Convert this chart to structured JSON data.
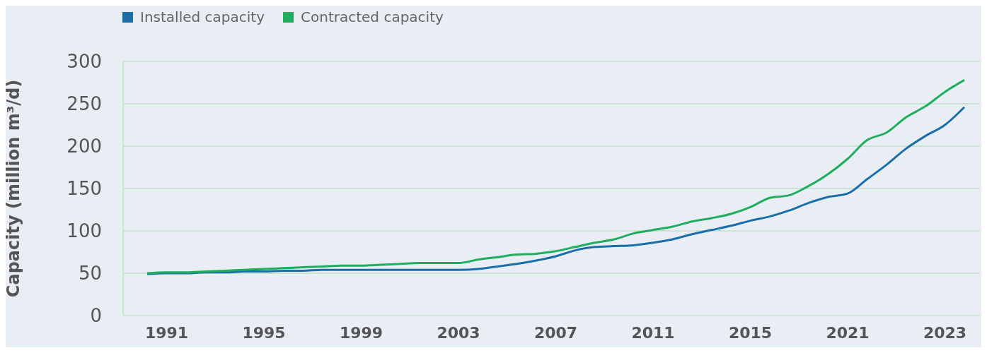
{
  "chart_data": {
    "type": "line",
    "ylabel": "Capacity (million m³/d)",
    "categories": [
      null,
      "1991",
      null,
      null,
      null,
      null,
      "1995",
      null,
      null,
      null,
      null,
      "1999",
      null,
      null,
      null,
      null,
      "2003",
      null,
      null,
      null,
      null,
      "2007",
      null,
      null,
      null,
      null,
      "2011",
      null,
      null,
      null,
      null,
      "2015",
      null,
      null,
      null,
      null,
      "2021",
      null,
      null,
      null,
      null,
      "2023",
      null
    ],
    "series": [
      {
        "name": "Installed capacity",
        "color": "#1a6fa8",
        "values": [
          49,
          50,
          50,
          51,
          51,
          52,
          52,
          53,
          53,
          54,
          54,
          54,
          54,
          54,
          54,
          54,
          54,
          55,
          58,
          61,
          65,
          70,
          77,
          81,
          82,
          83,
          86,
          90,
          96,
          101,
          106,
          112,
          117,
          124,
          133,
          140,
          144,
          161,
          178,
          197,
          212,
          225,
          246
        ]
      },
      {
        "name": "Contracted capacity",
        "color": "#20ad5e",
        "values": [
          50,
          51,
          51,
          52,
          53,
          54,
          55,
          56,
          57,
          58,
          59,
          59,
          60,
          61,
          62,
          62,
          62,
          66,
          69,
          72,
          73,
          76,
          81,
          86,
          90,
          97,
          101,
          105,
          111,
          115,
          120,
          128,
          139,
          142,
          153,
          167,
          185,
          207,
          216,
          234,
          247,
          264,
          278
        ]
      }
    ],
    "ylim": [
      0,
      300
    ],
    "yticks": [
      0,
      50,
      100,
      150,
      200,
      250,
      300
    ],
    "grid": "y",
    "legend": "top left",
    "marker": "none",
    "line_style": "solid"
  }
}
